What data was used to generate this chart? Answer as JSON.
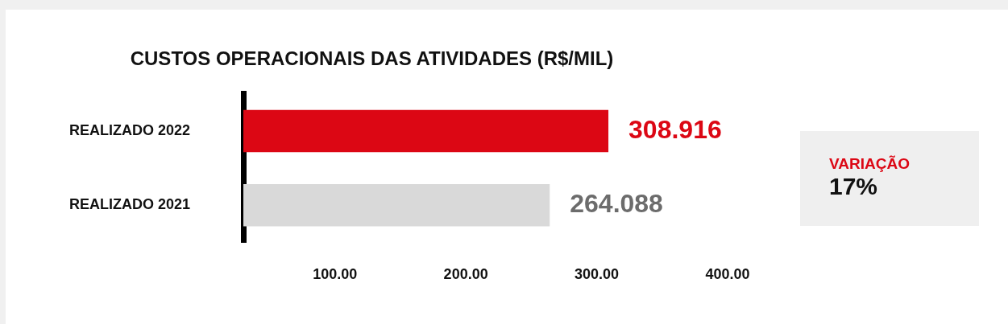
{
  "chart_data": {
    "type": "bar",
    "orientation": "horizontal",
    "title": "CUSTOS OPERACIONAIS DAS ATIVIDADES (R$/MIL)",
    "categories": [
      "REALIZADO 2022",
      "REALIZADO 2021"
    ],
    "values": [
      308.916,
      264.088
    ],
    "colors": [
      "#dc0714",
      "#d9d9d9"
    ],
    "value_labels": [
      "308.916",
      "264.088"
    ],
    "xlim": [
      30,
      400
    ],
    "xticks": [
      {
        "value": 100,
        "label": "100.00"
      },
      {
        "value": 200,
        "label": "200.00"
      },
      {
        "value": 300,
        "label": "300.00"
      },
      {
        "value": 400,
        "label": "400.00"
      }
    ],
    "grid": false,
    "legend": false,
    "annotations": [
      "VARIAÇÃO",
      "17%"
    ]
  }
}
